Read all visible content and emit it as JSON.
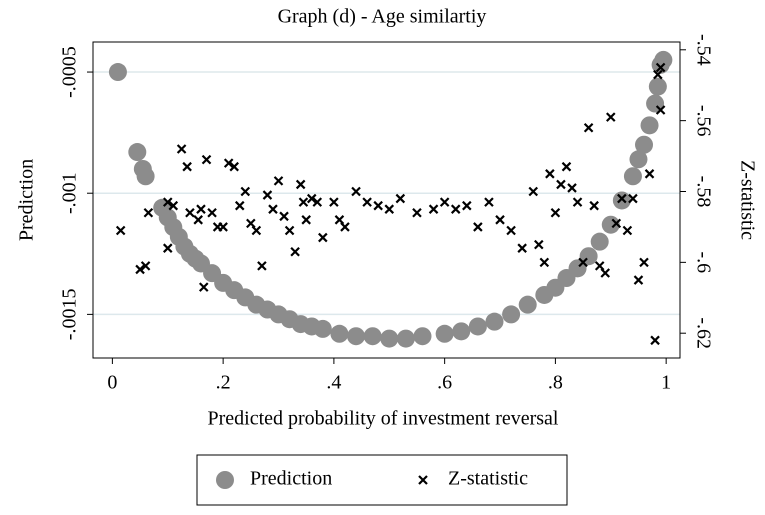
{
  "chart_data": {
    "type": "scatter",
    "title": "Graph (d) - Age similartiy",
    "xlabel": "Predicted probability of investment reversal",
    "ylabel": "Prediction",
    "y2label": "Z-statistic",
    "xlim": [
      -0.035,
      1.025
    ],
    "xticks": [
      0,
      {
        "value": 0.2,
        "label": ".2"
      },
      {
        "value": 0.4,
        "label": ".4"
      },
      {
        "value": 0.6,
        "label": ".6"
      },
      {
        "value": 0.8,
        "label": ".8"
      },
      1
    ],
    "ylim": [
      -0.00168,
      -0.000376
    ],
    "yticks": [
      {
        "value": -0.0005,
        "label": "-.0005"
      },
      {
        "value": -0.001,
        "label": "-.001"
      },
      {
        "value": -0.0015,
        "label": "-.0015"
      }
    ],
    "y2lim": [
      -0.627,
      -0.5378
    ],
    "y2ticks": [
      {
        "value": -0.54,
        "label": "-.54"
      },
      {
        "value": -0.56,
        "label": "-.56"
      },
      {
        "value": -0.58,
        "label": "-.58"
      },
      {
        "value": -0.6,
        "label": "-.6"
      },
      {
        "value": -0.62,
        "label": "-.62"
      }
    ],
    "grid": true,
    "legend": "bottom",
    "series": [
      {
        "name": "Prediction",
        "color": "#8c8c8c",
        "marker": "circle",
        "x": [
          0.01,
          0.045,
          0.055,
          0.06,
          0.09,
          0.1,
          0.11,
          0.12,
          0.13,
          0.14,
          0.15,
          0.16,
          0.18,
          0.2,
          0.22,
          0.24,
          0.26,
          0.28,
          0.3,
          0.32,
          0.34,
          0.36,
          0.38,
          0.41,
          0.44,
          0.47,
          0.5,
          0.53,
          0.56,
          0.6,
          0.63,
          0.66,
          0.69,
          0.72,
          0.75,
          0.78,
          0.8,
          0.82,
          0.84,
          0.86,
          0.88,
          0.9,
          0.92,
          0.94,
          0.95,
          0.96,
          0.97,
          0.98,
          0.985,
          0.99,
          0.995
        ],
        "values": [
          -0.0005,
          -0.00083,
          -0.0009,
          -0.00093,
          -0.00106,
          -0.0011,
          -0.00114,
          -0.00118,
          -0.00122,
          -0.00125,
          -0.00127,
          -0.00129,
          -0.00133,
          -0.00137,
          -0.0014,
          -0.00143,
          -0.00146,
          -0.00148,
          -0.0015,
          -0.00152,
          -0.00154,
          -0.00155,
          -0.00156,
          -0.00158,
          -0.00159,
          -0.00159,
          -0.0016,
          -0.0016,
          -0.00159,
          -0.00158,
          -0.00157,
          -0.00155,
          -0.00153,
          -0.0015,
          -0.00146,
          -0.00142,
          -0.00139,
          -0.00135,
          -0.00131,
          -0.00126,
          -0.0012,
          -0.00113,
          -0.00103,
          -0.00093,
          -0.00086,
          -0.0008,
          -0.00072,
          -0.00063,
          -0.00056,
          -0.00047,
          -0.00045
        ]
      },
      {
        "name": "Z-statistic",
        "color": "#000000",
        "marker": "x",
        "axis": "y2",
        "x": [
          0.015,
          0.05,
          0.06,
          0.065,
          0.1,
          0.1,
          0.11,
          0.125,
          0.135,
          0.14,
          0.155,
          0.16,
          0.165,
          0.17,
          0.18,
          0.19,
          0.2,
          0.21,
          0.22,
          0.23,
          0.24,
          0.25,
          0.26,
          0.27,
          0.28,
          0.29,
          0.3,
          0.31,
          0.32,
          0.33,
          0.34,
          0.345,
          0.35,
          0.36,
          0.37,
          0.38,
          0.4,
          0.41,
          0.42,
          0.44,
          0.46,
          0.48,
          0.5,
          0.52,
          0.55,
          0.58,
          0.6,
          0.62,
          0.64,
          0.66,
          0.68,
          0.7,
          0.72,
          0.74,
          0.76,
          0.77,
          0.78,
          0.79,
          0.8,
          0.81,
          0.82,
          0.83,
          0.84,
          0.85,
          0.86,
          0.87,
          0.88,
          0.89,
          0.9,
          0.91,
          0.92,
          0.93,
          0.94,
          0.95,
          0.96,
          0.97,
          0.98,
          0.985,
          0.99,
          0.99
        ],
        "values": [
          -0.591,
          -0.602,
          -0.601,
          -0.586,
          -0.596,
          -0.583,
          -0.584,
          -0.568,
          -0.573,
          -0.586,
          -0.588,
          -0.585,
          -0.607,
          -0.571,
          -0.586,
          -0.59,
          -0.59,
          -0.572,
          -0.573,
          -0.584,
          -0.58,
          -0.589,
          -0.591,
          -0.601,
          -0.581,
          -0.585,
          -0.577,
          -0.587,
          -0.591,
          -0.597,
          -0.578,
          -0.583,
          -0.588,
          -0.582,
          -0.583,
          -0.593,
          -0.583,
          -0.588,
          -0.59,
          -0.58,
          -0.583,
          -0.584,
          -0.585,
          -0.582,
          -0.586,
          -0.585,
          -0.583,
          -0.585,
          -0.584,
          -0.59,
          -0.583,
          -0.588,
          -0.591,
          -0.596,
          -0.58,
          -0.595,
          -0.6,
          -0.575,
          -0.586,
          -0.578,
          -0.573,
          -0.579,
          -0.583,
          -0.6,
          -0.562,
          -0.584,
          -0.601,
          -0.603,
          -0.559,
          -0.589,
          -0.582,
          -0.591,
          -0.582,
          -0.605,
          -0.6,
          -0.575,
          -0.622,
          -0.547,
          -0.545,
          -0.557
        ]
      }
    ]
  }
}
